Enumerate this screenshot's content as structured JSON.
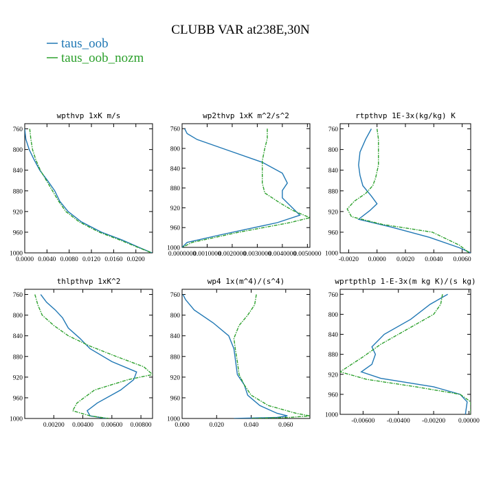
{
  "figure": {
    "title": "CLUBB VAR at238E,30N",
    "legend": [
      {
        "label": "taus_oob",
        "color": "#1f77b4"
      },
      {
        "label": "taus_oob_nozm",
        "color": "#2ca02c"
      }
    ]
  },
  "chart_data": [
    {
      "type": "line",
      "title": "wpthvp   1xK m/s",
      "xlim": [
        0.0,
        0.023
      ],
      "xticks": [
        0.0,
        0.004,
        0.008,
        0.012,
        0.016,
        0.02
      ],
      "xtick_labels": [
        "0.0000",
        "0.0040",
        "0.0080",
        "0.0120",
        "0.0160",
        "0.0200"
      ],
      "ylim": [
        750,
        1000
      ],
      "yticks": [
        760,
        800,
        840,
        880,
        920,
        960,
        1000
      ],
      "series": [
        {
          "name": "taus_oob",
          "x": [
            0.0,
            0.0002,
            0.0008,
            0.0017,
            0.0027,
            0.0041,
            0.0054,
            0.0063,
            0.0078,
            0.0102,
            0.0138,
            0.0175,
            0.0207,
            0.0229
          ],
          "y": [
            760,
            780,
            800,
            820,
            840,
            860,
            880,
            900,
            920,
            940,
            960,
            975,
            990,
            1000
          ]
        },
        {
          "name": "taus_oob_nozm",
          "x": [
            0.0009,
            0.0011,
            0.0014,
            0.002,
            0.0028,
            0.0039,
            0.005,
            0.0061,
            0.0074,
            0.0098,
            0.0134,
            0.0171,
            0.0205,
            0.0229
          ],
          "y": [
            760,
            780,
            800,
            820,
            840,
            860,
            880,
            900,
            920,
            940,
            960,
            975,
            990,
            1000
          ]
        }
      ]
    },
    {
      "type": "line",
      "title": "wp2thvp   1xK m^2/s^2",
      "xlim": [
        0.0,
        0.0051
      ],
      "xticks": [
        0.0,
        0.001,
        0.002,
        0.003,
        0.004,
        0.005
      ],
      "xtick_labels": [
        "0.0000000",
        "0.0010000",
        "0.0020000",
        "0.0030000",
        "0.0040000",
        "0.0050000"
      ],
      "ylim": [
        750,
        1000
      ],
      "yticks": [
        760,
        800,
        840,
        880,
        920,
        960,
        1000
      ],
      "series": [
        {
          "name": "taus_oob",
          "x": [
            0.0001,
            0.0002,
            0.0006,
            0.0019,
            0.0032,
            0.004,
            0.0042,
            0.004,
            0.004,
            0.0047,
            0.0038,
            0.0015,
            0.0002,
            0.0
          ],
          "y": [
            760,
            770,
            782,
            805,
            828,
            850,
            870,
            885,
            900,
            935,
            950,
            975,
            990,
            1000
          ]
        },
        {
          "name": "taus_oob_nozm",
          "x": [
            0.0034,
            0.0034,
            0.0033,
            0.0032,
            0.0032,
            0.0032,
            0.0033,
            0.0039,
            0.0044,
            0.0051,
            0.0043,
            0.0022,
            0.0004,
            0.0
          ],
          "y": [
            760,
            780,
            800,
            825,
            850,
            870,
            890,
            910,
            925,
            940,
            950,
            970,
            990,
            1000
          ]
        }
      ]
    },
    {
      "type": "line",
      "title": "rtpthvp   1E-3x(kg/kg) K",
      "xlim": [
        -0.0026,
        0.0066
      ],
      "xticks": [
        -0.002,
        0.0,
        0.002,
        0.004,
        0.006
      ],
      "xtick_labels": [
        "-0.0020",
        "0.0000",
        "0.0020",
        "0.0040",
        "0.0060"
      ],
      "ylim": [
        750,
        1000
      ],
      "yticks": [
        760,
        800,
        840,
        880,
        920,
        960,
        1000
      ],
      "series": [
        {
          "name": "taus_oob",
          "x": [
            -0.0004,
            -0.0008,
            -0.0012,
            -0.0013,
            -0.0012,
            -0.001,
            -0.0004,
            0.0,
            -0.0005,
            -0.0013,
            0.001,
            0.0037,
            0.0058,
            0.0066
          ],
          "y": [
            760,
            780,
            805,
            830,
            850,
            870,
            890,
            905,
            918,
            935,
            950,
            970,
            990,
            1000
          ]
        },
        {
          "name": "taus_oob_nozm",
          "x": [
            0.0,
            0.0001,
            0.0001,
            0.0001,
            -0.0001,
            -0.0003,
            -0.0008,
            -0.0016,
            -0.0021,
            -0.0018,
            0.0004,
            0.0039,
            0.0058,
            0.0065
          ],
          "y": [
            760,
            780,
            800,
            830,
            855,
            870,
            885,
            900,
            915,
            930,
            945,
            960,
            985,
            1000
          ]
        }
      ]
    },
    {
      "type": "line",
      "title": "thlpthvp   1xK^2",
      "xlim": [
        0.0,
        0.0088
      ],
      "xticks": [
        0.002,
        0.004,
        0.006,
        0.008
      ],
      "xtick_labels": [
        "0.00200",
        "0.00400",
        "0.00600",
        "0.00800"
      ],
      "ylim": [
        750,
        1000
      ],
      "yticks": [
        760,
        800,
        840,
        880,
        920,
        960,
        1000
      ],
      "series": [
        {
          "name": "taus_oob",
          "x": [
            0.0011,
            0.0015,
            0.0021,
            0.0026,
            0.003,
            0.0038,
            0.0045,
            0.006,
            0.0077,
            0.0075,
            0.0066,
            0.005,
            0.0043,
            0.0045,
            0.0056
          ],
          "y": [
            760,
            775,
            790,
            805,
            825,
            845,
            865,
            890,
            910,
            925,
            945,
            970,
            985,
            995,
            1000
          ]
        },
        {
          "name": "taus_oob_nozm",
          "x": [
            0.0007,
            0.0009,
            0.0012,
            0.002,
            0.003,
            0.0045,
            0.0063,
            0.0082,
            0.0088,
            0.0071,
            0.0048,
            0.0036,
            0.0033,
            0.0045,
            0.0058
          ],
          "y": [
            760,
            780,
            800,
            820,
            840,
            860,
            880,
            900,
            915,
            925,
            945,
            970,
            985,
            995,
            1000
          ]
        }
      ]
    },
    {
      "type": "line",
      "title": "wp4   1x(m^4)/(s^4)",
      "xlim": [
        0.0,
        0.074
      ],
      "xticks": [
        0.0,
        0.02,
        0.04,
        0.06
      ],
      "xtick_labels": [
        "0.000",
        "0.020",
        "0.040",
        "0.060"
      ],
      "ylim": [
        750,
        1000
      ],
      "yticks": [
        760,
        800,
        840,
        880,
        920,
        960,
        1000
      ],
      "series": [
        {
          "name": "taus_oob",
          "x": [
            0.0005,
            0.002,
            0.007,
            0.018,
            0.027,
            0.03,
            0.031,
            0.032,
            0.036,
            0.038,
            0.045,
            0.055,
            0.061,
            0.055,
            0.03
          ],
          "y": [
            760,
            770,
            790,
            815,
            840,
            865,
            890,
            915,
            935,
            955,
            975,
            990,
            995,
            998,
            1000
          ]
        },
        {
          "name": "taus_oob_nozm",
          "x": [
            0.043,
            0.042,
            0.038,
            0.033,
            0.03,
            0.031,
            0.032,
            0.033,
            0.036,
            0.04,
            0.05,
            0.066,
            0.074,
            0.062,
            0.04
          ],
          "y": [
            760,
            780,
            800,
            820,
            845,
            870,
            890,
            915,
            935,
            955,
            975,
            990,
            995,
            998,
            1000
          ]
        }
      ]
    },
    {
      "type": "line",
      "title": "wprtpthlp   1-E-3x(m kg K)/(s kg)",
      "xlim": [
        -0.0073,
        0.0001
      ],
      "xticks": [
        -0.006,
        -0.004,
        -0.002,
        0.0
      ],
      "xtick_labels": [
        "-0.00600",
        "-0.00400",
        "-0.00200",
        "0.00000"
      ],
      "ylim": [
        750,
        1000
      ],
      "yticks": [
        760,
        800,
        840,
        880,
        920,
        960,
        1000
      ],
      "series": [
        {
          "name": "taus_oob",
          "x": [
            -0.0012,
            -0.0022,
            -0.0033,
            -0.0048,
            -0.0055,
            -0.0053,
            -0.0055,
            -0.0061,
            -0.005,
            -0.002,
            -0.0005,
            -0.0001,
            -0.0002
          ],
          "y": [
            760,
            780,
            810,
            840,
            865,
            880,
            900,
            915,
            928,
            945,
            960,
            975,
            1000
          ]
        },
        {
          "name": "taus_oob_nozm",
          "x": [
            -0.0015,
            -0.0016,
            -0.002,
            -0.0035,
            -0.005,
            -0.006,
            -0.0073,
            -0.0058,
            -0.003,
            -0.0005,
            0.0001,
            0.0001
          ],
          "y": [
            760,
            780,
            800,
            830,
            860,
            885,
            915,
            930,
            945,
            960,
            975,
            1000
          ]
        }
      ]
    }
  ]
}
